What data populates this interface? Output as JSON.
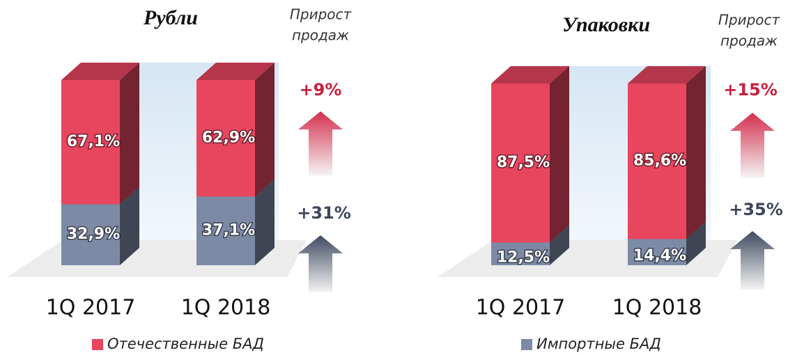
{
  "chart_data": [
    {
      "type": "bar3d_stacked",
      "title": "Рубли",
      "heading": [
        "Прирост",
        "продаж"
      ],
      "categories": [
        "1Q 2017",
        "1Q 2018"
      ],
      "ylim": [
        0,
        100
      ],
      "series": [
        {
          "color": "#7d8aa6",
          "values": [
            32.9,
            37.1
          ],
          "value_labels": [
            "32,9%",
            "37,1%"
          ],
          "growth": 31,
          "growth_label": "+31%"
        },
        {
          "name": "Отечественные БАД",
          "color": "#e8455f",
          "values": [
            67.1,
            62.9
          ],
          "value_labels": [
            "67,1%",
            "62,9%"
          ],
          "growth": 9,
          "growth_label": "+9%"
        }
      ]
    },
    {
      "type": "bar3d_stacked",
      "title": "Упаковки",
      "heading": [
        "Прирост",
        "продаж"
      ],
      "categories": [
        "1Q 2017",
        "1Q 2018"
      ],
      "ylim": [
        0,
        100
      ],
      "series": [
        {
          "name": "Импортные БАД",
          "color": "#7d8aa6",
          "values": [
            12.5,
            14.4
          ],
          "value_labels": [
            "12,5%",
            "14,4%"
          ],
          "growth": 35,
          "growth_label": "+35%"
        },
        {
          "color": "#e8455f",
          "values": [
            87.5,
            85.6
          ],
          "value_labels": [
            "87,5%",
            "85,6%"
          ],
          "growth": 15,
          "growth_label": "+15%"
        }
      ]
    }
  ]
}
